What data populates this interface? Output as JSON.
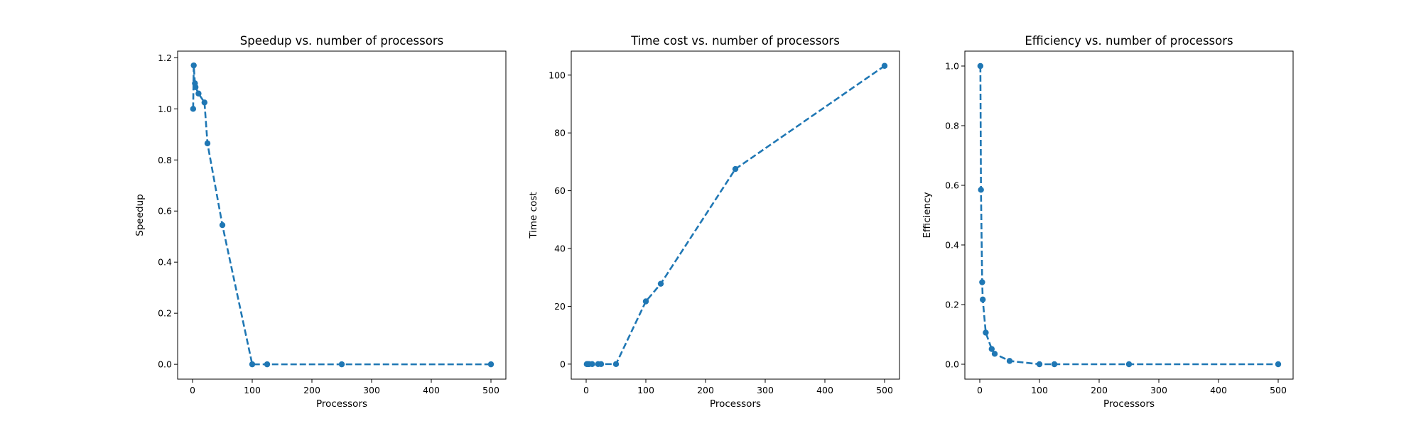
{
  "colors": {
    "series": "#1f77b4",
    "axes": "#000000",
    "background": "#ffffff"
  },
  "chart_data": [
    {
      "type": "line",
      "title": "Speedup vs. number of processors",
      "xlabel": "Processors",
      "ylabel": "Speedup",
      "xlim": [
        -25,
        525
      ],
      "ylim": [
        -0.058,
        1.226
      ],
      "xticks": [
        0,
        100,
        200,
        300,
        400,
        500
      ],
      "yticks": [
        0.0,
        0.2,
        0.4,
        0.6,
        0.8,
        1.0,
        1.2
      ],
      "ytick_labels": [
        "0.0",
        "0.2",
        "0.4",
        "0.6",
        "0.8",
        "1.0",
        "1.2"
      ],
      "grid": false,
      "line_style": "dashed",
      "marker": "circle",
      "series": [
        {
          "x": [
            1,
            2,
            4,
            5,
            10,
            20,
            25,
            50,
            100,
            125,
            250,
            500
          ],
          "values": [
            1.0,
            1.17,
            1.1,
            1.085,
            1.06,
            1.025,
            0.865,
            0.545,
            0.0,
            0.0,
            0.0,
            0.0
          ]
        }
      ]
    },
    {
      "type": "line",
      "title": "Time cost vs. number of processors",
      "xlabel": "Processors",
      "ylabel": "Time cost",
      "xlim": [
        -25,
        525
      ],
      "ylim": [
        -5.2,
        108.3
      ],
      "xticks": [
        0,
        100,
        200,
        300,
        400,
        500
      ],
      "yticks": [
        0,
        20,
        40,
        60,
        80,
        100
      ],
      "ytick_labels": [
        "0",
        "20",
        "40",
        "60",
        "80",
        "100"
      ],
      "grid": false,
      "line_style": "dashed",
      "marker": "circle",
      "series": [
        {
          "x": [
            1,
            2,
            4,
            5,
            10,
            20,
            25,
            50,
            100,
            125,
            250,
            500
          ],
          "values": [
            0.0,
            0.0,
            0.0,
            0.0,
            0.0,
            0.0,
            0.0,
            0.0,
            21.7,
            27.8,
            67.5,
            103.2
          ]
        }
      ]
    },
    {
      "type": "line",
      "title": "Efficiency vs. number of processors",
      "xlabel": "Processors",
      "ylabel": "Efficiency",
      "xlim": [
        -25,
        525
      ],
      "ylim": [
        -0.05,
        1.05
      ],
      "xticks": [
        0,
        100,
        200,
        300,
        400,
        500
      ],
      "yticks": [
        0.0,
        0.2,
        0.4,
        0.6,
        0.8,
        1.0
      ],
      "ytick_labels": [
        "0.0",
        "0.2",
        "0.4",
        "0.6",
        "0.8",
        "1.0"
      ],
      "grid": false,
      "line_style": "dashed",
      "marker": "circle",
      "series": [
        {
          "x": [
            1,
            2,
            4,
            5,
            10,
            20,
            25,
            50,
            100,
            125,
            250,
            500
          ],
          "values": [
            1.0,
            0.585,
            0.275,
            0.217,
            0.106,
            0.051,
            0.035,
            0.011,
            0.0,
            0.0,
            0.0,
            0.0
          ]
        }
      ]
    }
  ]
}
